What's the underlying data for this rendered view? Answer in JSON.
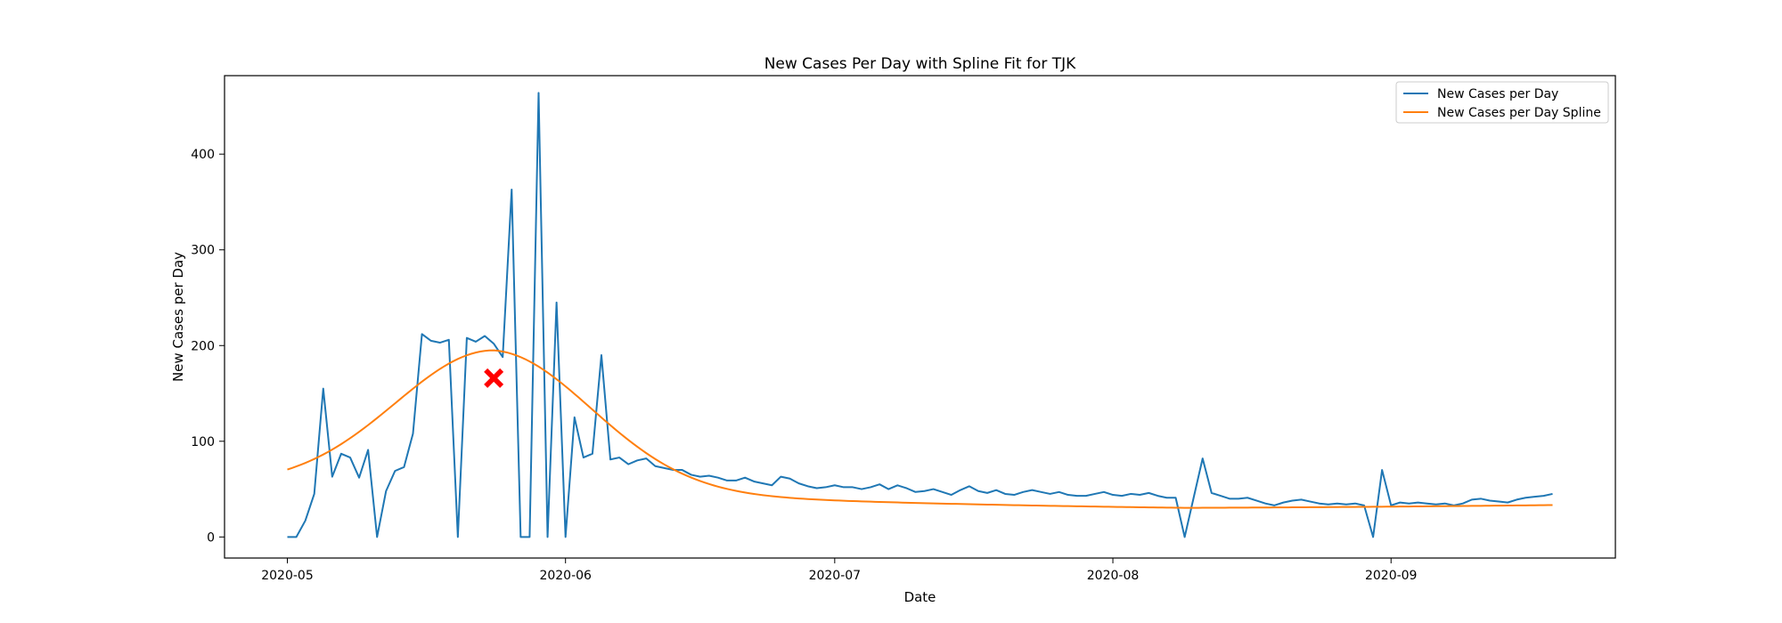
{
  "chart_data": {
    "type": "line",
    "title": "New Cases Per Day with Spline Fit for TJK",
    "xlabel": "Date",
    "ylabel": "New Cases per Day",
    "x_start": "2020-05-01",
    "x_end": "2020-09-19",
    "xlim": [
      "2020-04-24",
      "2020-09-26"
    ],
    "ylim": [
      -22,
      482
    ],
    "x_ticks": [
      {
        "date": "2020-05-01",
        "label": "2020-05"
      },
      {
        "date": "2020-06-01",
        "label": "2020-06"
      },
      {
        "date": "2020-07-01",
        "label": "2020-07"
      },
      {
        "date": "2020-08-01",
        "label": "2020-08"
      },
      {
        "date": "2020-09-01",
        "label": "2020-09"
      }
    ],
    "y_ticks": [
      0,
      100,
      200,
      300,
      400
    ],
    "grid": false,
    "legend_position": "top-right",
    "series": [
      {
        "name": "New Cases per Day",
        "color": "#1f77b4",
        "values": [
          0,
          0,
          17,
          45,
          155,
          63,
          87,
          83,
          62,
          91,
          0,
          48,
          69,
          73,
          108,
          212,
          205,
          203,
          206,
          0,
          208,
          204,
          210,
          202,
          188,
          363,
          0,
          0,
          464,
          0,
          245,
          0,
          125,
          83,
          87,
          190,
          81,
          83,
          76,
          80,
          82,
          74,
          72,
          70,
          70,
          65,
          63,
          64,
          62,
          59,
          59,
          62,
          58,
          56,
          54,
          63,
          61,
          56,
          53,
          51,
          52,
          54,
          52,
          52,
          50,
          52,
          55,
          50,
          54,
          51,
          47,
          48,
          50,
          47,
          44,
          49,
          53,
          48,
          46,
          49,
          45,
          44,
          47,
          49,
          47,
          45,
          47,
          44,
          43,
          43,
          45,
          47,
          44,
          43,
          45,
          44,
          46,
          43,
          41,
          41,
          0,
          41,
          82,
          46,
          43,
          40,
          40,
          41,
          38,
          35,
          33,
          36,
          38,
          39,
          37,
          35,
          34,
          35,
          34,
          35,
          33,
          0,
          70,
          33,
          36,
          35,
          36,
          35,
          34,
          35,
          33,
          35,
          39,
          40,
          38,
          37,
          36,
          39,
          41,
          42,
          43,
          45
        ]
      },
      {
        "name": "New Cases per Day Spline",
        "color": "#ff7f0e",
        "peak": {
          "date": "2020-05-24",
          "value": 166
        }
      }
    ],
    "marker": {
      "date": "2020-05-24",
      "value": 166,
      "symbol": "X",
      "color": "#ff0000"
    }
  }
}
